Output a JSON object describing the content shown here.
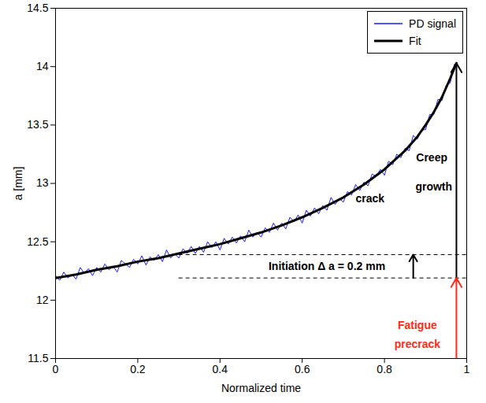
{
  "chart_data": {
    "type": "line",
    "x_label": "Normalized time",
    "y_label": "a [mm]",
    "xlim": [
      0,
      1
    ],
    "xticks": [
      0,
      0.2,
      0.4,
      0.6,
      0.8,
      1
    ],
    "ylim": [
      11.5,
      14.5
    ],
    "yticks": [
      11.5,
      12,
      12.5,
      13,
      13.5,
      14,
      14.5
    ],
    "grid": false,
    "legend": "top-right",
    "series": [
      {
        "name": "PD signal",
        "color": "#1a1aff",
        "line_style": "solid",
        "x": [
          0,
          0.01,
          0.02,
          0.03,
          0.04,
          0.05,
          0.06,
          0.07,
          0.08,
          0.09,
          0.1,
          0.11,
          0.12,
          0.13,
          0.14,
          0.15,
          0.16,
          0.17,
          0.18,
          0.19,
          0.2,
          0.21,
          0.22,
          0.23,
          0.24,
          0.25,
          0.26,
          0.27,
          0.28,
          0.29,
          0.3,
          0.31,
          0.32,
          0.33,
          0.34,
          0.35,
          0.36,
          0.37,
          0.38,
          0.39,
          0.4,
          0.41,
          0.42,
          0.43,
          0.44,
          0.45,
          0.46,
          0.47,
          0.48,
          0.49,
          0.5,
          0.51,
          0.52,
          0.53,
          0.54,
          0.55,
          0.56,
          0.57,
          0.58,
          0.59,
          0.6,
          0.61,
          0.62,
          0.63,
          0.64,
          0.65,
          0.66,
          0.67,
          0.68,
          0.69,
          0.7,
          0.71,
          0.72,
          0.73,
          0.74,
          0.75,
          0.76,
          0.77,
          0.78,
          0.79,
          0.8,
          0.81,
          0.82,
          0.83,
          0.84,
          0.85,
          0.86,
          0.87,
          0.88,
          0.89,
          0.9,
          0.91,
          0.92,
          0.93,
          0.94,
          0.95,
          0.96,
          0.97,
          0.975
        ],
        "values": [
          12.21,
          12.17,
          12.24,
          12.19,
          12.22,
          12.18,
          12.28,
          12.23,
          12.27,
          12.21,
          12.28,
          12.24,
          12.31,
          12.26,
          12.29,
          12.24,
          12.34,
          12.31,
          12.28,
          12.35,
          12.31,
          12.38,
          12.3,
          12.37,
          12.34,
          12.39,
          12.33,
          12.43,
          12.36,
          12.4,
          12.36,
          12.44,
          12.4,
          12.46,
          12.4,
          12.46,
          12.41,
          12.5,
          12.45,
          12.5,
          12.43,
          12.53,
          12.48,
          12.54,
          12.49,
          12.55,
          12.5,
          12.6,
          12.54,
          12.58,
          12.54,
          12.62,
          12.58,
          12.66,
          12.6,
          12.66,
          12.61,
          12.71,
          12.67,
          12.73,
          12.66,
          12.77,
          12.72,
          12.79,
          12.74,
          12.81,
          12.77,
          12.88,
          12.82,
          12.87,
          12.84,
          12.93,
          12.9,
          12.99,
          12.94,
          13.01,
          12.98,
          13.08,
          13.06,
          13.12,
          13.07,
          13.19,
          13.16,
          13.25,
          13.22,
          13.3,
          13.28,
          13.41,
          13.38,
          13.46,
          13.46,
          13.59,
          13.59,
          13.72,
          13.71,
          13.84,
          13.86,
          14.02,
          14.02
        ]
      },
      {
        "name": "Fit",
        "color": "#000000",
        "line_style": "solid",
        "x": [
          0,
          0.05,
          0.1,
          0.15,
          0.2,
          0.25,
          0.3,
          0.35,
          0.4,
          0.45,
          0.5,
          0.55,
          0.6,
          0.65,
          0.7,
          0.75,
          0.8,
          0.85,
          0.88,
          0.9,
          0.92,
          0.94,
          0.96,
          0.975
        ],
        "values": [
          12.19,
          12.22,
          12.26,
          12.29,
          12.33,
          12.36,
          12.4,
          12.44,
          12.48,
          12.53,
          12.58,
          12.64,
          12.71,
          12.79,
          12.88,
          12.99,
          13.12,
          13.28,
          13.4,
          13.5,
          13.61,
          13.74,
          13.9,
          14.03
        ]
      }
    ],
    "hlines": [
      {
        "y": 12.19,
        "x1": 0.3,
        "x2": 1,
        "line_style": "dashed"
      },
      {
        "y": 12.39,
        "x1": 0.3,
        "x2": 1,
        "line_style": "dashed"
      }
    ],
    "arrows": [
      {
        "x": 0.87,
        "y1": 12.19,
        "y2": 12.39,
        "color": "#000000"
      },
      {
        "x": 0.975,
        "y1": 12.19,
        "y2": 14.03,
        "color": "#000000"
      },
      {
        "x": 0.975,
        "y1": 11.5,
        "y2": 12.19,
        "color": "#ff2a1a"
      }
    ],
    "annotations": [
      {
        "text": "Initiation Δ a = 0.2 mm",
        "x": 0.66,
        "y": 12.29,
        "color": "#000000"
      },
      {
        "text": "crack",
        "x": 0.765,
        "y": 12.87,
        "color": "#000000"
      },
      {
        "text": "Creep",
        "x": 0.915,
        "y": 13.22,
        "color": "#000000"
      },
      {
        "text": "growth",
        "x": 0.92,
        "y": 12.97,
        "color": "#000000"
      },
      {
        "text": "Fatigue",
        "x": 0.88,
        "y": 11.78,
        "color": "#ff2a1a"
      },
      {
        "text": "precrack",
        "x": 0.88,
        "y": 11.62,
        "color": "#ff2a1a"
      }
    ]
  }
}
